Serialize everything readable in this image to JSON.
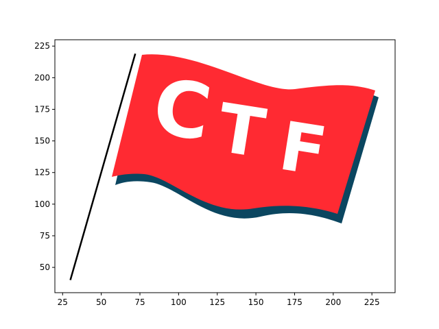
{
  "chart_data": {
    "type": "line",
    "title": "",
    "xlabel": "",
    "ylabel": "",
    "xlim": [
      20,
      240
    ],
    "ylim": [
      30,
      230
    ],
    "xticks": [
      25,
      50,
      75,
      100,
      125,
      150,
      175,
      200,
      225
    ],
    "yticks": [
      50,
      75,
      100,
      125,
      150,
      175,
      200,
      225
    ],
    "grid": false,
    "legend": "none",
    "series": [
      {
        "x": [
          30,
          72
        ],
        "y": [
          40,
          219
        ],
        "color": "#000000"
      }
    ],
    "image": {
      "description_text": "CTF",
      "colors": {
        "flag": "#ff2a32",
        "shadow": "#0b4660",
        "letters": "#ffffff",
        "pole": "#000000"
      }
    }
  }
}
